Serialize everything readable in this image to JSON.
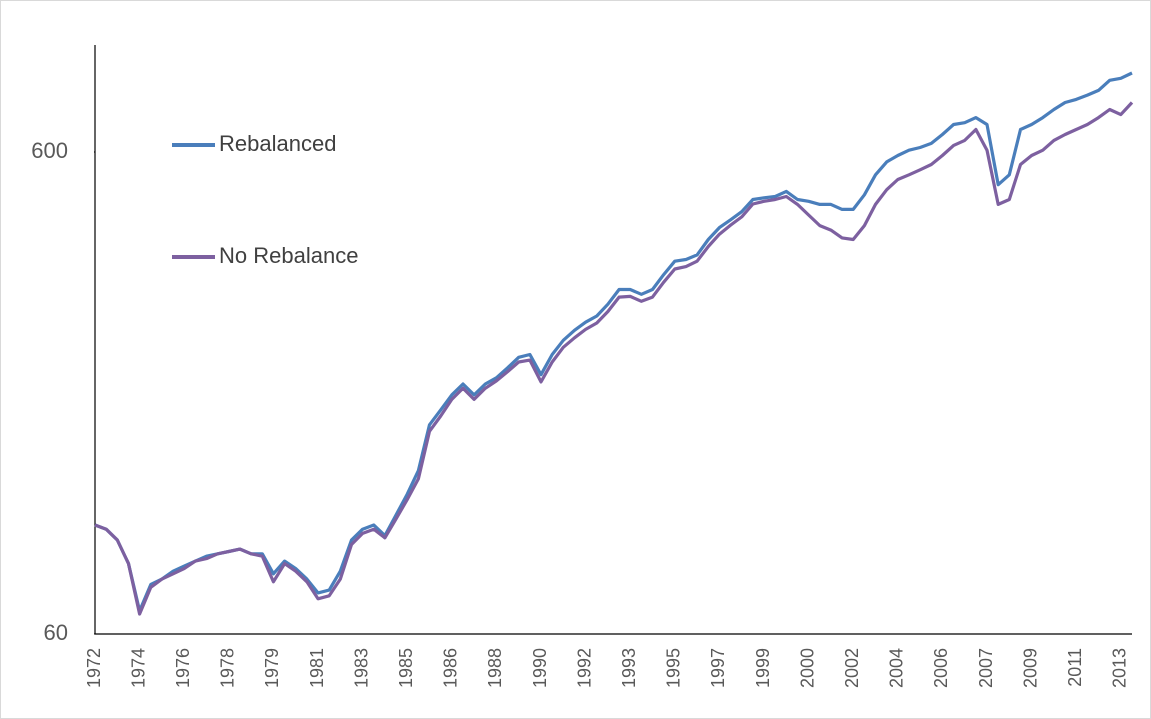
{
  "chart_data": {
    "type": "line",
    "log_scale": true,
    "ylim": [
      60,
      1000
    ],
    "yticks": [
      60,
      600
    ],
    "categories": [
      "1972",
      null,
      null,
      null,
      "1974",
      null,
      null,
      null,
      "1976",
      null,
      null,
      null,
      "1978",
      null,
      null,
      null,
      "1979",
      null,
      null,
      null,
      "1981",
      null,
      null,
      null,
      "1983",
      null,
      null,
      null,
      "1985",
      null,
      null,
      null,
      "1986",
      null,
      null,
      null,
      "1988",
      null,
      null,
      null,
      "1990",
      null,
      null,
      null,
      "1992",
      null,
      null,
      null,
      "1993",
      null,
      null,
      null,
      "1995",
      null,
      null,
      null,
      "1997",
      null,
      null,
      null,
      "1999",
      null,
      null,
      null,
      "2000",
      null,
      null,
      null,
      "2002",
      null,
      null,
      null,
      "2004",
      null,
      null,
      null,
      "2006",
      null,
      null,
      null,
      "2007",
      null,
      null,
      null,
      "2009",
      null,
      null,
      null,
      "2011",
      null,
      null,
      null,
      "2013",
      null
    ],
    "series": [
      {
        "name": "Rebalanced",
        "color": "#4a7ebb",
        "values": [
          101,
          99,
          94,
          84,
          67,
          76,
          78,
          81,
          83,
          85,
          87,
          88,
          89,
          90,
          88,
          88,
          80,
          85,
          82,
          78,
          73,
          74,
          81,
          94,
          99,
          101,
          96,
          106,
          117,
          131,
          163,
          175,
          188,
          198,
          188,
          198,
          204,
          214,
          225,
          228,
          207,
          228,
          244,
          256,
          266,
          274,
          290,
          311,
          311,
          304,
          311,
          334,
          356,
          359,
          367,
          395,
          418,
          434,
          451,
          478,
          482,
          485,
          497,
          478,
          474,
          467,
          467,
          456,
          456,
          489,
          538,
          572,
          590,
          605,
          613,
          625,
          652,
          684,
          690,
          707,
          684,
          513,
          538,
          668,
          684,
          707,
          735,
          760,
          771,
          787,
          805,
          845,
          853,
          875
        ]
      },
      {
        "name": "No Rebalance",
        "color": "#7d60a0",
        "values": [
          101,
          99,
          94,
          84,
          66,
          75,
          78,
          80,
          82,
          85,
          86,
          88,
          89,
          90,
          88,
          87,
          77,
          84,
          81,
          77,
          71,
          72,
          78,
          92,
          97,
          99,
          95,
          104,
          114,
          126,
          158,
          170,
          184,
          194,
          184,
          194,
          201,
          210,
          220,
          222,
          200,
          220,
          236,
          247,
          257,
          265,
          280,
          300,
          301,
          294,
          300,
          322,
          343,
          347,
          356,
          382,
          405,
          423,
          440,
          468,
          474,
          478,
          485,
          467,
          444,
          422,
          413,
          398,
          395,
          422,
          467,
          501,
          526,
          538,
          551,
          565,
          590,
          619,
          634,
          668,
          605,
          467,
          478,
          565,
          590,
          605,
          634,
          652,
          668,
          684,
          707,
          735,
          717,
          760
        ]
      }
    ]
  }
}
